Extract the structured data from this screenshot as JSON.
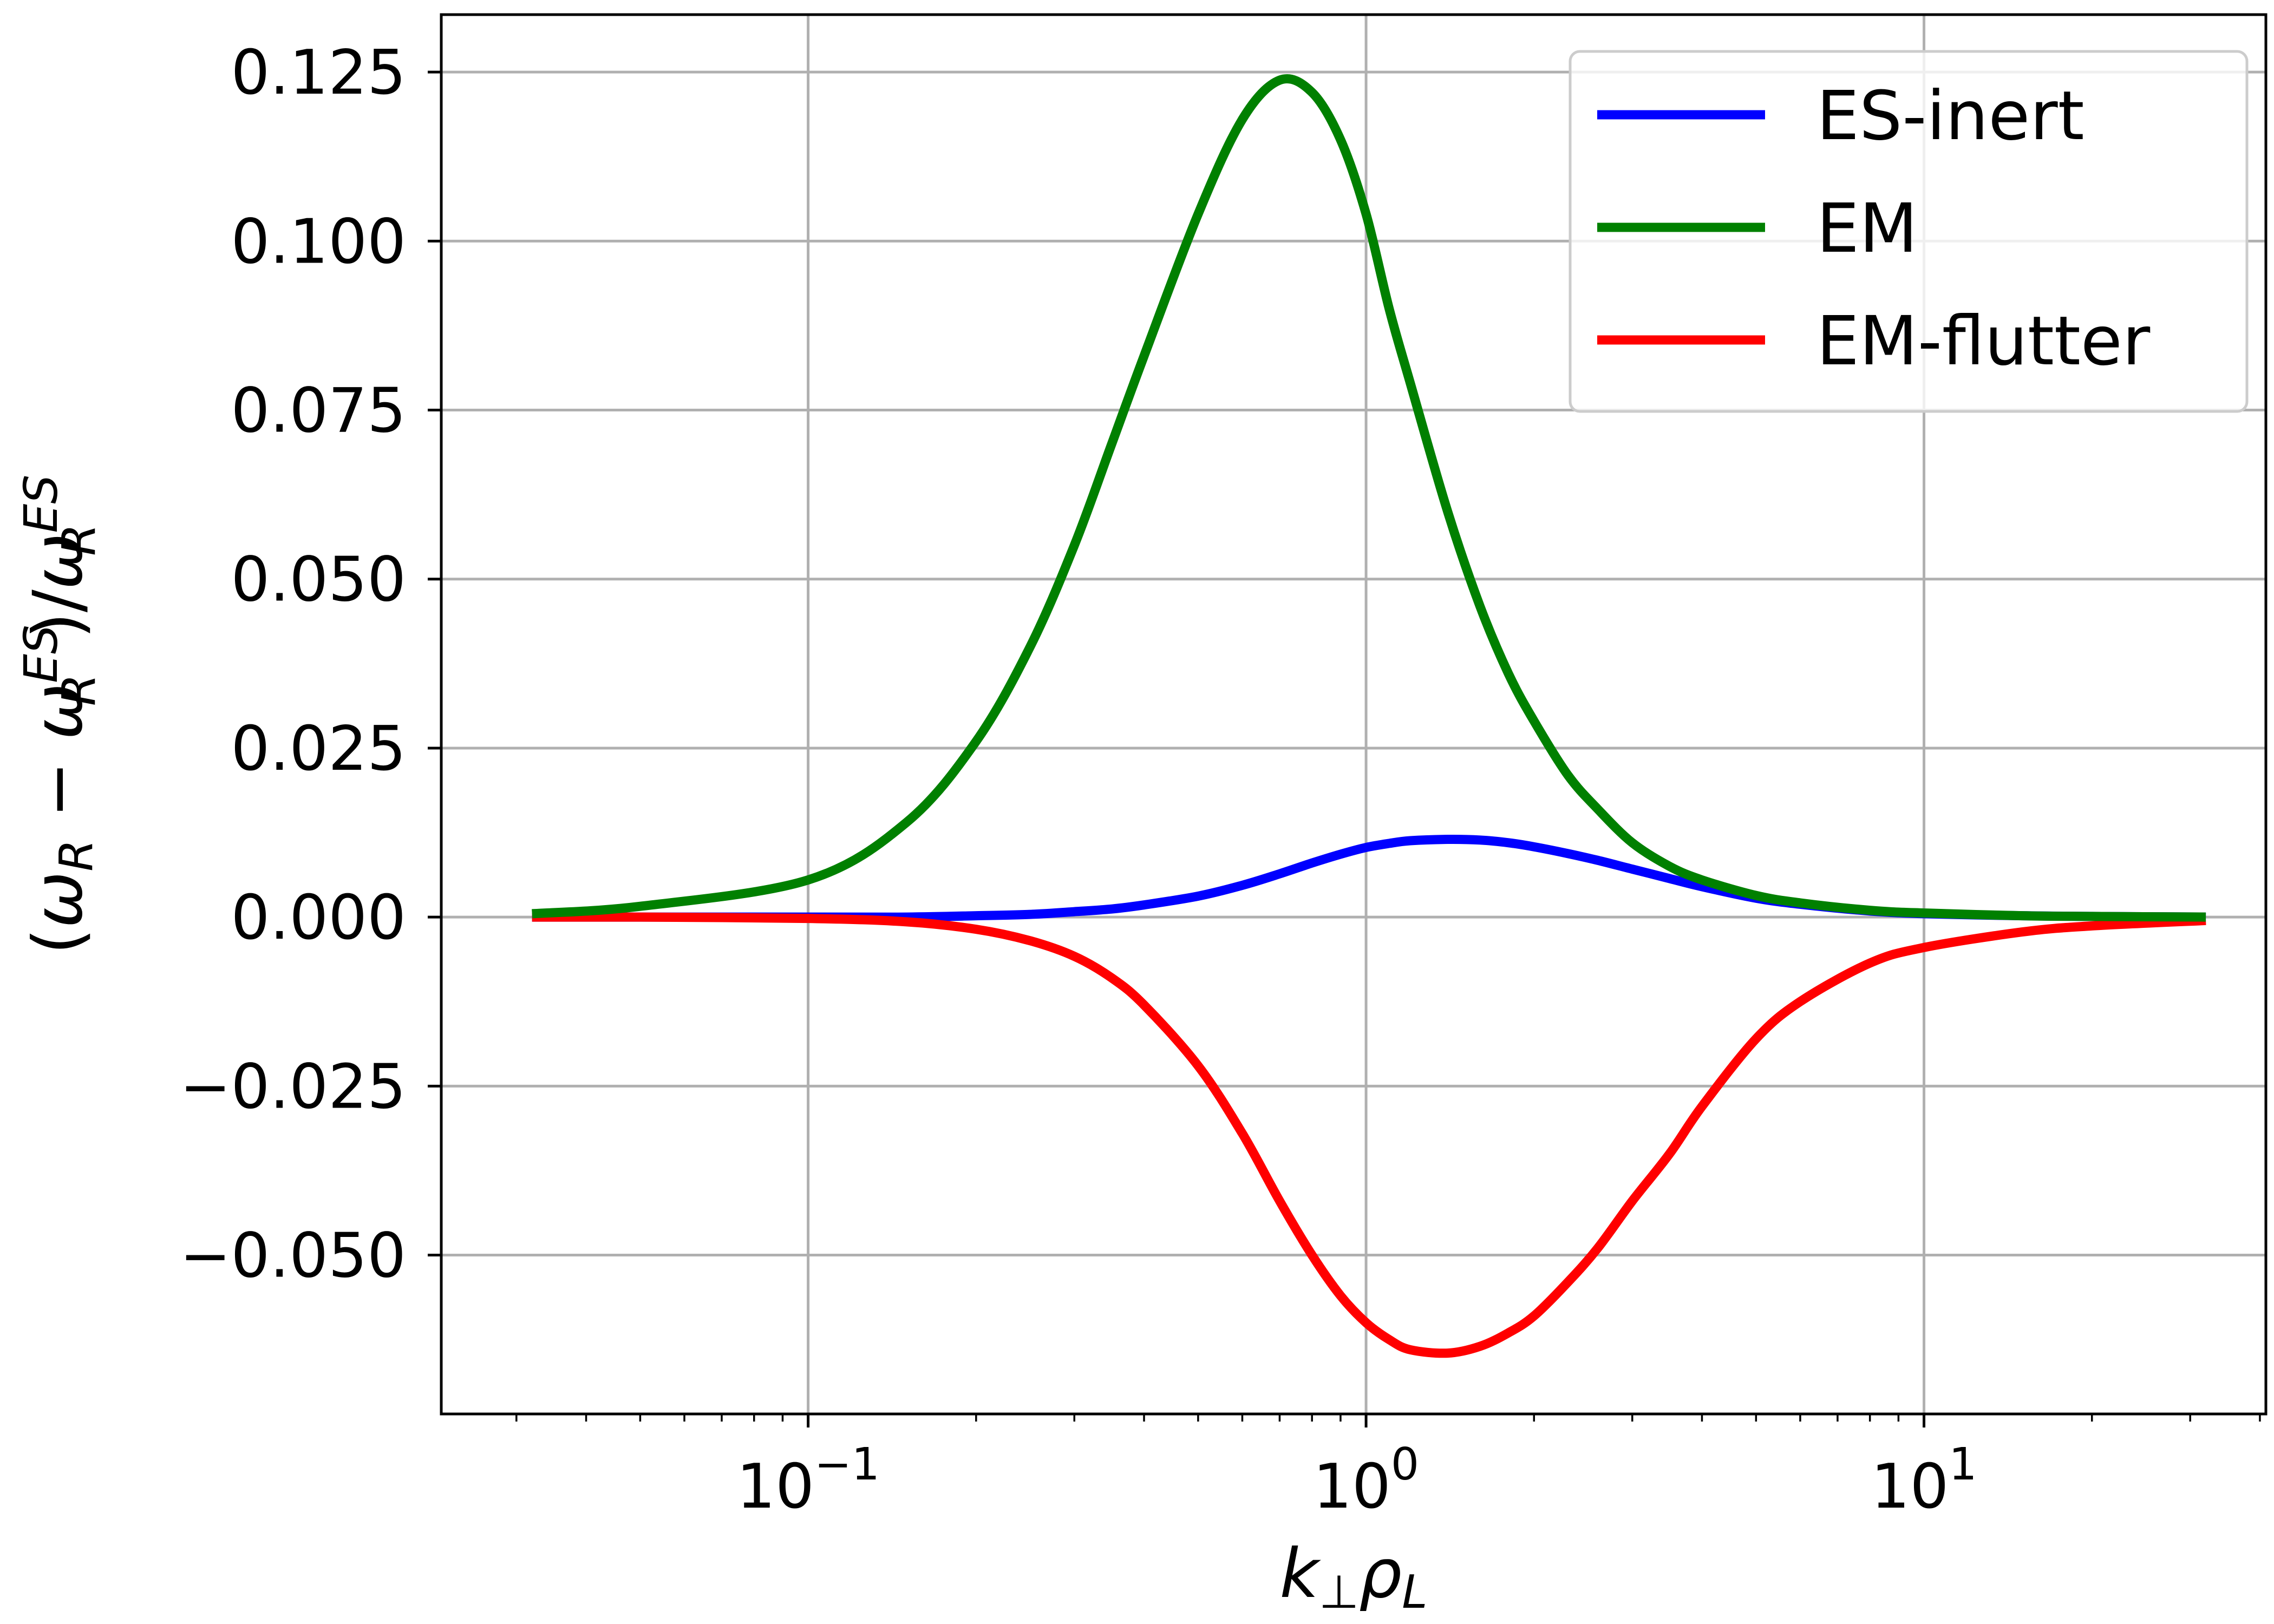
{
  "chart_data": {
    "type": "line",
    "title": "",
    "xlabel": "k⊥ρL",
    "ylabel": "(ωR − ωR^ES)/ωR^ES",
    "x_scale": "log",
    "xlim": [
      0.022,
      41
    ],
    "ylim": [
      -0.0735,
      0.1335
    ],
    "x_ticks": [
      {
        "value": 0.1,
        "base": "10",
        "exp": "−1"
      },
      {
        "value": 1,
        "base": "10",
        "exp": "0"
      },
      {
        "value": 10,
        "base": "10",
        "exp": "1"
      }
    ],
    "y_ticks": [
      {
        "value": -0.05,
        "label": "−0.050"
      },
      {
        "value": -0.025,
        "label": "−0.025"
      },
      {
        "value": 0.0,
        "label": "0.000"
      },
      {
        "value": 0.025,
        "label": "0.025"
      },
      {
        "value": 0.05,
        "label": "0.050"
      },
      {
        "value": 0.075,
        "label": "0.075"
      },
      {
        "value": 0.1,
        "label": "0.100"
      },
      {
        "value": 0.125,
        "label": "0.125"
      }
    ],
    "grid": true,
    "legend_position": "top-right",
    "x": [
      0.032,
      0.05,
      0.1,
      0.15,
      0.2,
      0.25,
      0.3,
      0.35,
      0.4,
      0.5,
      0.6,
      0.7,
      0.8,
      0.9,
      1.0,
      1.1,
      1.2,
      1.4,
      1.6,
      1.8,
      2.0,
      2.3,
      2.6,
      3.0,
      3.5,
      4.0,
      5.0,
      6.0,
      8.0,
      10.0,
      15.0,
      20.0,
      32.0
    ],
    "series": [
      {
        "name": "ES-inert",
        "color": "#0000ff",
        "values": [
          0.0,
          0.0,
          0.0,
          0.0,
          0.0002,
          0.0004,
          0.0008,
          0.0012,
          0.0018,
          0.0031,
          0.0047,
          0.0064,
          0.008,
          0.0093,
          0.0103,
          0.0109,
          0.0113,
          0.0115,
          0.0114,
          0.011,
          0.0104,
          0.0094,
          0.0084,
          0.0071,
          0.0057,
          0.0045,
          0.0028,
          0.0019,
          0.0009,
          0.0005,
          0.0002,
          0.0001,
          0.0
        ]
      },
      {
        "name": "EM",
        "color": "#008000",
        "values": [
          0.0005,
          0.0016,
          0.0055,
          0.014,
          0.026,
          0.04,
          0.055,
          0.07,
          0.083,
          0.104,
          0.118,
          0.1238,
          0.122,
          0.115,
          0.104,
          0.09,
          0.079,
          0.06,
          0.046,
          0.036,
          0.029,
          0.021,
          0.016,
          0.011,
          0.0075,
          0.0055,
          0.0032,
          0.0021,
          0.001,
          0.0006,
          0.0002,
          0.0001,
          0.0
        ]
      },
      {
        "name": "EM-flutter",
        "color": "#ff0000",
        "values": [
          0.0,
          0.0,
          -0.0002,
          -0.0007,
          -0.0018,
          -0.0035,
          -0.0058,
          -0.009,
          -0.013,
          -0.022,
          -0.032,
          -0.042,
          -0.05,
          -0.056,
          -0.06,
          -0.0625,
          -0.064,
          -0.0645,
          -0.0635,
          -0.0615,
          -0.059,
          -0.054,
          -0.049,
          -0.042,
          -0.035,
          -0.028,
          -0.018,
          -0.0125,
          -0.0068,
          -0.0045,
          -0.0022,
          -0.0013,
          -0.0005
        ]
      }
    ]
  }
}
